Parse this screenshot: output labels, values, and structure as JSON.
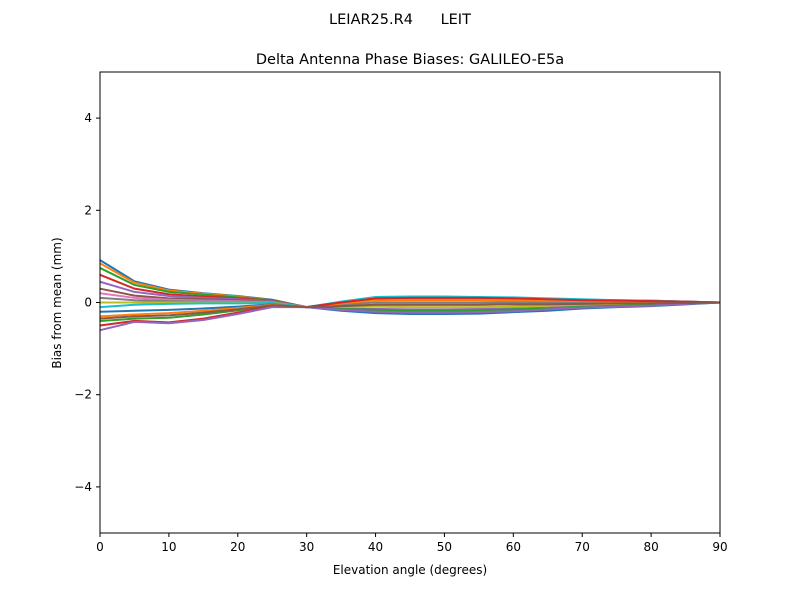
{
  "chart_data": {
    "type": "line",
    "suptitle": "LEIAR25.R4      LEIT",
    "title": "Delta Antenna Phase Biases: GALILEO-E5a",
    "xlabel": "Elevation angle (degrees)",
    "ylabel": "Bias from mean (mm)",
    "xlim": [
      0,
      90
    ],
    "ylim": [
      -5,
      5
    ],
    "xticks": [
      0,
      10,
      20,
      30,
      40,
      50,
      60,
      70,
      80,
      90
    ],
    "yticks": [
      -4,
      -2,
      0,
      2,
      4
    ],
    "ytick_labels": [
      "−4",
      "−2",
      "0",
      "2",
      "4"
    ],
    "grid": false,
    "colors": [
      "#1f77b4",
      "#ff7f0e",
      "#2ca02c",
      "#d62728",
      "#9467bd",
      "#8c564b",
      "#e377c2",
      "#7f7f7f",
      "#bcbd22",
      "#17becf"
    ],
    "x": [
      0,
      5,
      10,
      15,
      20,
      25,
      30,
      35,
      40,
      45,
      50,
      55,
      60,
      65,
      70,
      75,
      80,
      85,
      90
    ],
    "series": [
      {
        "values": [
          0.92,
          0.46,
          0.28,
          0.2,
          0.14,
          0.06,
          -0.1,
          0.01,
          0.11,
          0.12,
          0.12,
          0.11,
          0.1,
          0.08,
          0.06,
          0.05,
          0.04,
          0.02,
          0
        ]
      },
      {
        "values": [
          0.85,
          0.43,
          0.26,
          0.19,
          0.13,
          0.05,
          -0.1,
          -0.03,
          0.05,
          0.05,
          0.05,
          0.05,
          0.04,
          0.04,
          0.03,
          0.02,
          0.02,
          0.01,
          0
        ]
      },
      {
        "values": [
          0.75,
          0.38,
          0.23,
          0.17,
          0.11,
          0.05,
          -0.1,
          -0.08,
          -0.05,
          -0.05,
          -0.05,
          -0.05,
          -0.04,
          -0.04,
          -0.03,
          -0.02,
          -0.02,
          -0.01,
          0
        ]
      },
      {
        "values": [
          0.6,
          0.3,
          0.18,
          0.13,
          0.09,
          0.04,
          -0.1,
          0,
          0.09,
          0.1,
          0.1,
          0.1,
          0.09,
          0.07,
          0.05,
          0.04,
          0.03,
          0.02,
          0
        ]
      },
      {
        "values": [
          0.45,
          0.23,
          0.14,
          0.1,
          0.07,
          0.03,
          -0.1,
          -0.13,
          -0.14,
          -0.15,
          -0.15,
          -0.14,
          -0.13,
          -0.11,
          -0.08,
          -0.06,
          -0.05,
          -0.02,
          0
        ]
      },
      {
        "values": [
          0.3,
          0.15,
          0.09,
          0.07,
          0.05,
          0.02,
          -0.1,
          -0.01,
          0.07,
          0.08,
          0.08,
          0.08,
          0.07,
          0.06,
          0.04,
          0.03,
          0.02,
          0.01,
          0
        ]
      },
      {
        "values": [
          0.2,
          0.1,
          0.06,
          0.04,
          0.03,
          0.01,
          -0.1,
          -0.15,
          -0.18,
          -0.2,
          -0.2,
          -0.19,
          -0.17,
          -0.14,
          -0.1,
          -0.08,
          -0.06,
          -0.03,
          0
        ]
      },
      {
        "values": [
          0.1,
          0.05,
          0.03,
          0.02,
          0.02,
          0.01,
          -0.1,
          -0.05,
          0,
          0,
          0,
          0,
          0,
          0,
          0,
          0,
          0,
          0,
          0
        ]
      },
      {
        "values": [
          0,
          0,
          0,
          0,
          0,
          0,
          -0.1,
          -0.1,
          -0.09,
          -0.1,
          -0.1,
          -0.1,
          -0.09,
          -0.07,
          -0.05,
          -0.04,
          -0.03,
          -0.02,
          0
        ]
      },
      {
        "values": [
          -0.1,
          -0.05,
          -0.03,
          -0.02,
          -0.02,
          -0.01,
          -0.1,
          0.02,
          0.12,
          0.13,
          0.13,
          0.12,
          0.11,
          0.09,
          0.07,
          0.05,
          0.04,
          0.02,
          0
        ]
      },
      {
        "values": [
          -0.2,
          -0.18,
          -0.16,
          -0.13,
          -0.09,
          -0.04,
          -0.1,
          -0.18,
          -0.23,
          -0.25,
          -0.25,
          -0.24,
          -0.21,
          -0.18,
          -0.13,
          -0.1,
          -0.08,
          -0.04,
          0
        ]
      },
      {
        "values": [
          -0.3,
          -0.26,
          -0.23,
          -0.18,
          -0.12,
          -0.05,
          -0.1,
          -0.02,
          0.05,
          0.06,
          0.06,
          0.06,
          0.05,
          0.04,
          0.03,
          0.02,
          0.02,
          0.01,
          0
        ]
      },
      {
        "values": [
          -0.4,
          -0.35,
          -0.33,
          -0.26,
          -0.17,
          -0.06,
          -0.1,
          -0.14,
          -0.16,
          -0.18,
          -0.18,
          -0.17,
          -0.15,
          -0.13,
          -0.09,
          -0.07,
          -0.05,
          -0.03,
          0
        ]
      },
      {
        "values": [
          -0.5,
          -0.4,
          -0.43,
          -0.35,
          -0.22,
          -0.08,
          -0.1,
          0,
          0.09,
          0.1,
          0.1,
          0.1,
          0.09,
          0.07,
          0.05,
          0.04,
          0.03,
          0.02,
          0
        ]
      },
      {
        "values": [
          -0.6,
          -0.42,
          -0.45,
          -0.38,
          -0.25,
          -0.1,
          -0.1,
          -0.16,
          -0.2,
          -0.22,
          -0.22,
          -0.21,
          -0.19,
          -0.15,
          -0.11,
          -0.09,
          -0.07,
          -0.03,
          0
        ]
      },
      {
        "values": [
          -0.35,
          -0.3,
          -0.28,
          -0.22,
          -0.15,
          -0.06,
          -0.1,
          -0.08,
          -0.05,
          -0.05,
          -0.05,
          -0.05,
          -0.04,
          -0.04,
          -0.03,
          -0.02,
          -0.02,
          -0.01,
          0
        ]
      }
    ]
  }
}
